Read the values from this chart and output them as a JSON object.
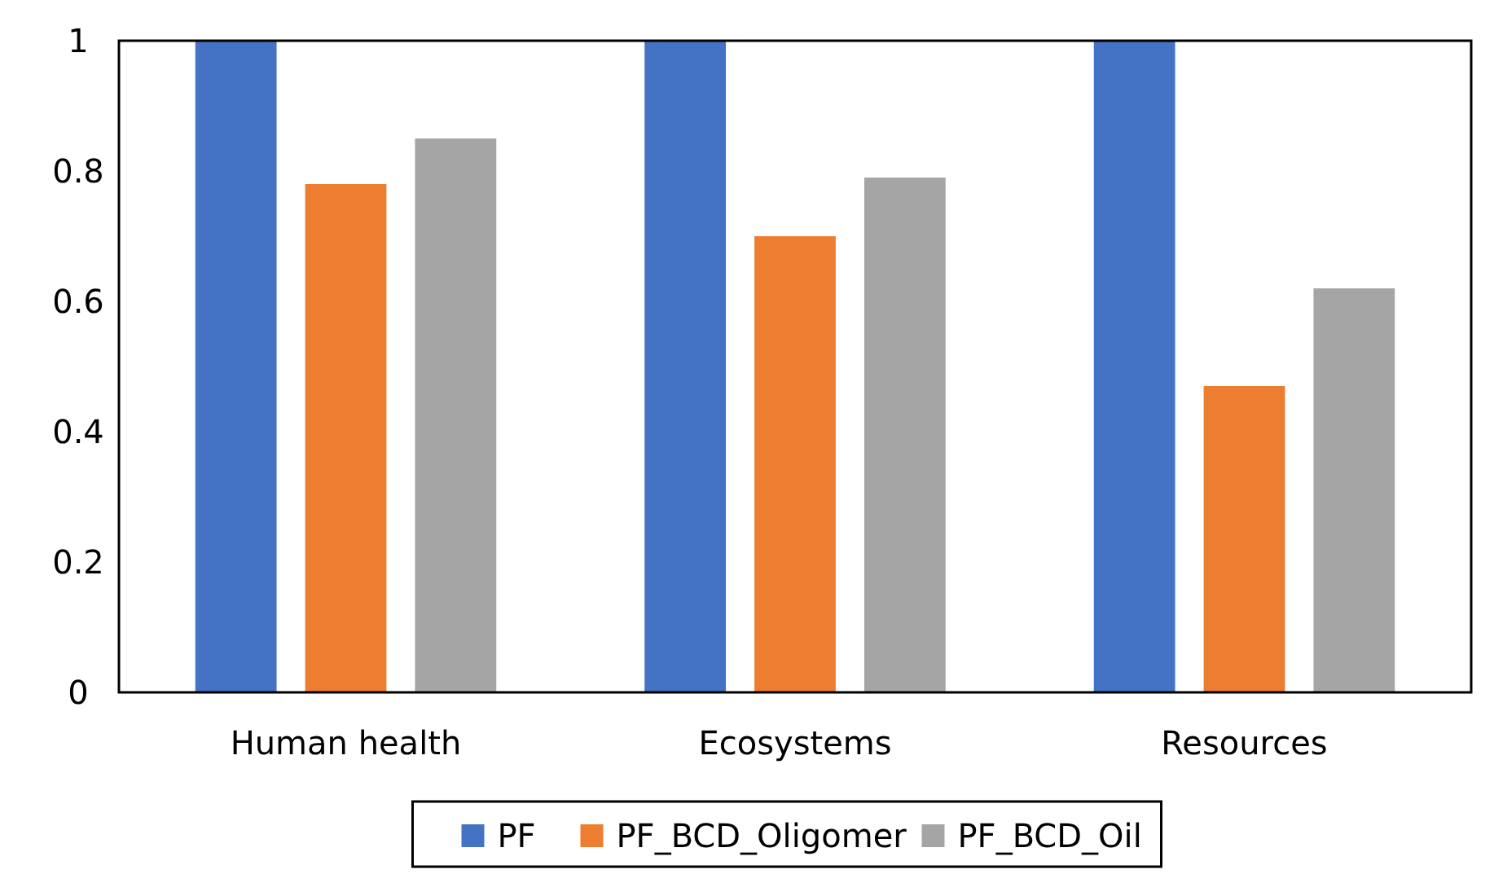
{
  "chart_data": {
    "type": "bar",
    "categories": [
      "Human health",
      "Ecosystems",
      "Resources"
    ],
    "series": [
      {
        "name": "PF",
        "color": "#4472c4",
        "values": [
          1,
          1,
          1
        ]
      },
      {
        "name": "PF_BCD_Oligomer",
        "color": "#ed7d31",
        "values": [
          0.78,
          0.7,
          0.47
        ]
      },
      {
        "name": "PF_BCD_Oil",
        "color": "#a5a5a5",
        "values": [
          0.85,
          0.79,
          0.62
        ]
      }
    ],
    "ylim": [
      0,
      1
    ],
    "yticks": [
      0,
      0.2,
      0.4,
      0.6,
      0.8,
      1
    ],
    "grid": false,
    "legend": "bottom"
  }
}
